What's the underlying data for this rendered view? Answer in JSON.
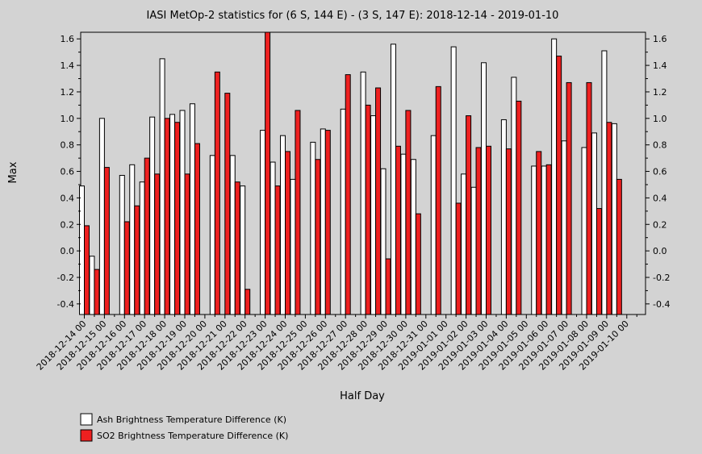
{
  "chart_data": {
    "type": "bar",
    "title": "IASI MetOp-2 statistics for (6 S, 144 E) - (3 S, 147 E): 2018-12-14 - 2019-01-10",
    "xlabel": "Half Day",
    "ylabel": "Max",
    "ylim": [
      -0.48,
      1.65
    ],
    "yticks": [
      "-0.4",
      "-0.2",
      "0.0",
      "0.2",
      "0.4",
      "0.6",
      "0.8",
      "1.0",
      "1.2",
      "1.4",
      "1.6"
    ],
    "ytick_values": [
      -0.4,
      -0.2,
      0.0,
      0.2,
      0.4,
      0.6,
      0.8,
      1.0,
      1.2,
      1.4,
      1.6
    ],
    "grid": false,
    "legend_position": "bottom-left",
    "categories": [
      "2018-12-14 00",
      "2018-12-14 12",
      "2018-12-15 00",
      "2018-12-15 12",
      "2018-12-16 00",
      "2018-12-16 12",
      "2018-12-17 00",
      "2018-12-17 12",
      "2018-12-18 00",
      "2018-12-18 12",
      "2018-12-19 00",
      "2018-12-19 12",
      "2018-12-20 00",
      "2018-12-20 12",
      "2018-12-21 00",
      "2018-12-21 12",
      "2018-12-22 00",
      "2018-12-22 12",
      "2018-12-23 00",
      "2018-12-23 12",
      "2018-12-24 00",
      "2018-12-24 12",
      "2018-12-25 00",
      "2018-12-25 12",
      "2018-12-26 00",
      "2018-12-26 12",
      "2018-12-27 00",
      "2018-12-27 12",
      "2018-12-28 00",
      "2018-12-28 12",
      "2018-12-29 00",
      "2018-12-29 12",
      "2018-12-30 00",
      "2018-12-30 12",
      "2018-12-31 00",
      "2018-12-31 12",
      "2019-01-01 00",
      "2019-01-01 12",
      "2019-01-02 00",
      "2019-01-02 12",
      "2019-01-03 00",
      "2019-01-03 12",
      "2019-01-04 00",
      "2019-01-04 12",
      "2019-01-05 00",
      "2019-01-05 12",
      "2019-01-06 00",
      "2019-01-06 12",
      "2019-01-07 00",
      "2019-01-07 12",
      "2019-01-08 00",
      "2019-01-08 12",
      "2019-01-09 00",
      "2019-01-09 12",
      "2019-01-10 00",
      "2019-01-10 12"
    ],
    "xtick_labels": [
      "2018-12-14 00",
      "2018-12-15 00",
      "2018-12-16 00",
      "2018-12-17 00",
      "2018-12-18 00",
      "2018-12-19 00",
      "2018-12-20 00",
      "2018-12-21 00",
      "2018-12-22 00",
      "2018-12-23 00",
      "2018-12-24 00",
      "2018-12-25 00",
      "2018-12-26 00",
      "2018-12-27 00",
      "2018-12-28 00",
      "2018-12-29 00",
      "2018-12-30 00",
      "2018-12-31 00",
      "2019-01-01 00",
      "2019-01-02 00",
      "2019-01-03 00",
      "2019-01-04 00",
      "2019-01-05 00",
      "2019-01-06 00",
      "2019-01-07 00",
      "2019-01-08 00",
      "2019-01-09 00",
      "2019-01-10 00"
    ],
    "series": [
      {
        "name": "Ash Brightness Temperature Difference (K)",
        "color": "#ffffff",
        "values": [
          0.49,
          -0.04,
          1.0,
          null,
          0.57,
          0.65,
          0.52,
          1.01,
          1.45,
          1.03,
          1.06,
          1.11,
          null,
          0.72,
          null,
          0.72,
          0.49,
          null,
          0.91,
          0.67,
          0.87,
          0.54,
          null,
          0.82,
          0.92,
          null,
          1.07,
          null,
          1.35,
          1.02,
          0.62,
          1.56,
          0.73,
          0.69,
          null,
          0.87,
          null,
          1.54,
          0.58,
          0.48,
          1.42,
          null,
          0.99,
          1.31,
          null,
          0.64,
          0.64,
          1.6,
          0.83,
          null,
          0.78,
          0.89,
          1.51,
          0.96,
          null,
          null
        ]
      },
      {
        "name": "SO2 Brightness Temperature Difference (K)",
        "color": "#ee2020",
        "values": [
          0.19,
          -0.14,
          0.63,
          null,
          0.22,
          0.34,
          0.7,
          0.58,
          1.0,
          0.97,
          0.58,
          0.81,
          null,
          1.35,
          1.19,
          0.52,
          -0.29,
          null,
          1.65,
          0.49,
          0.75,
          1.06,
          null,
          0.69,
          0.91,
          null,
          1.33,
          null,
          1.1,
          1.23,
          -0.06,
          0.79,
          1.06,
          0.28,
          null,
          1.24,
          null,
          0.36,
          1.02,
          0.78,
          0.79,
          null,
          0.77,
          1.13,
          null,
          0.75,
          0.65,
          1.47,
          1.27,
          null,
          1.27,
          0.32,
          0.97,
          0.54,
          null,
          null
        ]
      }
    ]
  }
}
